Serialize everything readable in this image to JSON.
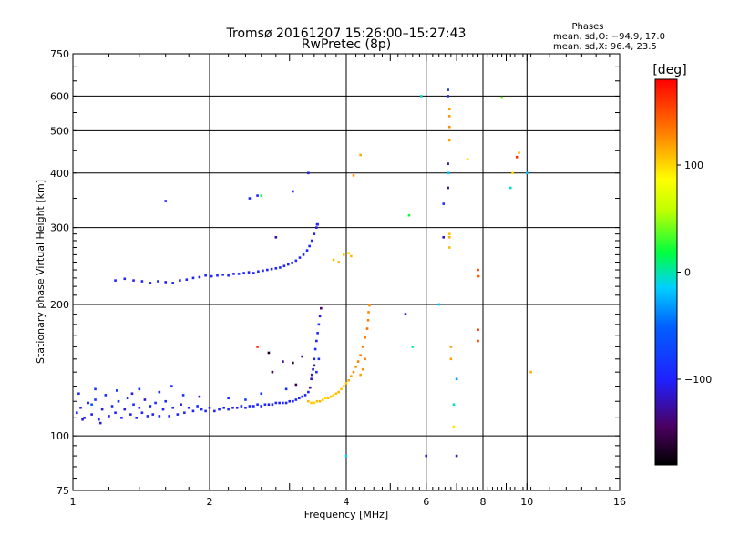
{
  "chart_data": {
    "type": "scatter",
    "title": "Tromsø 20161207 15:26:00–15:27:43",
    "subtitle": "RwPretec (8p)",
    "xlabel": "Frequency [MHz]",
    "ylabel": "Stationary phase Virtual Height [km]",
    "x_scale": "log",
    "y_scale": "log",
    "xlim": [
      1,
      16
    ],
    "ylim": [
      75,
      750
    ],
    "x_ticks": [
      1,
      2,
      4,
      6,
      8,
      10,
      16
    ],
    "x_tick_labels": [
      "1",
      "2",
      "4",
      "6",
      "8",
      "10",
      "16"
    ],
    "y_ticks": [
      75,
      100,
      200,
      300,
      400,
      500,
      600,
      750
    ],
    "y_tick_labels": [
      "75",
      "100",
      "200",
      "300",
      "400",
      "500",
      "600",
      "750"
    ],
    "grid": true,
    "stats": {
      "heading": "Phases",
      "line_o": "mean, sd,O: −94.9, 17.0",
      "line_x": "mean, sd,X:  96.4, 23.5"
    },
    "colorbar": {
      "label": "[deg]",
      "range": [
        -180,
        180
      ],
      "ticks": [
        100,
        0,
        -100
      ],
      "tick_labels": [
        "100",
        "0",
        "−100"
      ],
      "colormap": "rainbow"
    },
    "series": [
      {
        "points": [
          [
            1.02,
            113,
            -95
          ],
          [
            1.04,
            116,
            -100
          ],
          [
            1.06,
            110,
            -92
          ],
          [
            1.08,
            119,
            -98
          ],
          [
            1.1,
            112,
            -105
          ],
          [
            1.12,
            121,
            -90
          ],
          [
            1.14,
            109,
            -96
          ],
          [
            1.16,
            115,
            -110
          ],
          [
            1.18,
            124,
            -94
          ],
          [
            1.2,
            111,
            -99
          ],
          [
            1.22,
            117,
            -88
          ],
          [
            1.24,
            113,
            -102
          ],
          [
            1.26,
            120,
            -97
          ],
          [
            1.28,
            110,
            -93
          ],
          [
            1.3,
            115,
            -108
          ],
          [
            1.32,
            122,
            -95
          ],
          [
            1.34,
            112,
            -100
          ],
          [
            1.36,
            118,
            -91
          ],
          [
            1.38,
            110,
            -104
          ],
          [
            1.4,
            116,
            -96
          ],
          [
            1.42,
            113,
            -98
          ],
          [
            1.44,
            121,
            -115
          ],
          [
            1.46,
            111,
            -94
          ],
          [
            1.48,
            117,
            -99
          ],
          [
            1.5,
            112,
            -102
          ],
          [
            1.52,
            119,
            -90
          ],
          [
            1.55,
            111,
            -97
          ],
          [
            1.58,
            115,
            -103
          ],
          [
            1.6,
            120,
            -95
          ],
          [
            1.63,
            111,
            -100
          ],
          [
            1.66,
            116,
            -92
          ],
          [
            1.7,
            112,
            -98
          ],
          [
            1.73,
            118,
            -106
          ],
          [
            1.76,
            113,
            -94
          ],
          [
            1.8,
            116,
            -99
          ],
          [
            1.84,
            114,
            -101
          ],
          [
            1.88,
            117,
            -96
          ],
          [
            1.92,
            115,
            -93
          ],
          [
            1.96,
            114,
            -98
          ],
          [
            2.0,
            116,
            -102
          ],
          [
            2.05,
            114,
            -95
          ],
          [
            2.1,
            115,
            -97
          ],
          [
            2.15,
            116,
            -100
          ],
          [
            2.2,
            115,
            -93
          ],
          [
            2.25,
            116,
            -99
          ],
          [
            2.3,
            116,
            -104
          ],
          [
            2.35,
            117,
            -96
          ],
          [
            2.4,
            116,
            -94
          ],
          [
            2.45,
            117,
            -101
          ],
          [
            2.5,
            117,
            -97
          ],
          [
            2.55,
            118,
            -95
          ],
          [
            2.6,
            117,
            -99
          ],
          [
            2.65,
            118,
            -92
          ],
          [
            2.7,
            118,
            -100
          ],
          [
            2.75,
            118,
            -96
          ],
          [
            2.8,
            119,
            -98
          ],
          [
            2.85,
            119,
            -103
          ],
          [
            2.9,
            119,
            -95
          ],
          [
            2.95,
            119,
            -97
          ],
          [
            3.0,
            120,
            -99
          ],
          [
            3.05,
            120,
            -94
          ],
          [
            3.1,
            121,
            -101
          ],
          [
            3.15,
            122,
            -96
          ],
          [
            3.2,
            123,
            -98
          ],
          [
            3.25,
            124,
            -100
          ],
          [
            3.3,
            126,
            -95
          ],
          [
            3.33,
            129,
            -130
          ],
          [
            3.35,
            135,
            -120
          ],
          [
            3.38,
            142,
            -110
          ],
          [
            3.4,
            150,
            -98
          ],
          [
            3.42,
            158,
            -94
          ],
          [
            3.44,
            165,
            -100
          ],
          [
            3.46,
            172,
            -96
          ],
          [
            3.48,
            180,
            -92
          ],
          [
            3.5,
            188,
            -105
          ],
          [
            3.52,
            196,
            -140
          ],
          [
            3.44,
            140,
            -90
          ],
          [
            3.48,
            150,
            -88
          ],
          [
            3.36,
            138,
            -112
          ],
          [
            3.4,
            145,
            -130
          ],
          [
            1.03,
            125,
            -90
          ],
          [
            1.12,
            128,
            -85
          ],
          [
            1.25,
            127,
            -88
          ],
          [
            1.4,
            128,
            -84
          ],
          [
            1.55,
            126,
            -92
          ],
          [
            1.75,
            124,
            -86
          ],
          [
            2.2,
            122,
            -90
          ],
          [
            2.6,
            125,
            -85
          ],
          [
            2.95,
            128,
            -88
          ],
          [
            3.1,
            131,
            -150
          ],
          [
            1.1,
            118,
            -60
          ],
          [
            1.05,
            109,
            -110
          ],
          [
            1.15,
            107,
            -104
          ],
          [
            1.35,
            125,
            -110
          ],
          [
            1.65,
            130,
            -95
          ],
          [
            1.9,
            123,
            -108
          ],
          [
            2.4,
            121,
            -80
          ],
          [
            2.75,
            140,
            -150
          ],
          [
            3.05,
            147,
            -160
          ],
          [
            3.2,
            152,
            -130
          ]
        ]
      },
      {
        "points": [
          [
            1.24,
            227,
            -100
          ],
          [
            1.3,
            229,
            -96
          ],
          [
            1.36,
            227,
            -102
          ],
          [
            1.42,
            226,
            -94
          ],
          [
            1.48,
            224,
            -99
          ],
          [
            1.54,
            226,
            -97
          ],
          [
            1.6,
            225,
            -101
          ],
          [
            1.66,
            224,
            -95
          ],
          [
            1.72,
            227,
            -98
          ],
          [
            1.78,
            228,
            -92
          ],
          [
            1.84,
            230,
            -100
          ],
          [
            1.9,
            231,
            -97
          ],
          [
            1.96,
            233,
            -99
          ],
          [
            2.02,
            232,
            -95
          ],
          [
            2.08,
            233,
            -101
          ],
          [
            2.14,
            234,
            -96
          ],
          [
            2.2,
            233,
            -98
          ],
          [
            2.26,
            235,
            -100
          ],
          [
            2.32,
            235,
            -94
          ],
          [
            2.38,
            236,
            -99
          ],
          [
            2.44,
            237,
            -97
          ],
          [
            2.5,
            236,
            -102
          ],
          [
            2.56,
            238,
            -95
          ],
          [
            2.62,
            239,
            -98
          ],
          [
            2.68,
            240,
            -100
          ],
          [
            2.74,
            241,
            -96
          ],
          [
            2.8,
            242,
            -99
          ],
          [
            2.86,
            243,
            -95
          ],
          [
            2.92,
            245,
            -101
          ],
          [
            2.98,
            247,
            -97
          ],
          [
            3.04,
            249,
            -100
          ],
          [
            3.1,
            252,
            -94
          ],
          [
            3.16,
            256,
            -98
          ],
          [
            3.22,
            260,
            -102
          ],
          [
            3.28,
            266,
            -96
          ],
          [
            3.32,
            272,
            -99
          ],
          [
            3.36,
            280,
            -93
          ],
          [
            3.4,
            290,
            -97
          ],
          [
            3.44,
            300,
            -110
          ],
          [
            3.46,
            305,
            -105
          ]
        ]
      },
      {
        "points": [
          [
            3.3,
            120,
            110
          ],
          [
            3.35,
            119,
            105
          ],
          [
            3.4,
            119,
            100
          ],
          [
            3.45,
            120,
            108
          ],
          [
            3.5,
            120,
            112
          ],
          [
            3.55,
            121,
            104
          ],
          [
            3.6,
            122,
            98
          ],
          [
            3.65,
            122,
            106
          ],
          [
            3.7,
            123,
            110
          ],
          [
            3.75,
            124,
            102
          ],
          [
            3.8,
            125,
            108
          ],
          [
            3.85,
            126,
            112
          ],
          [
            3.9,
            128,
            105
          ],
          [
            3.95,
            130,
            100
          ],
          [
            4.0,
            132,
            106
          ],
          [
            4.05,
            134,
            115
          ],
          [
            4.1,
            137,
            120
          ],
          [
            4.15,
            140,
            124
          ],
          [
            4.2,
            144,
            128
          ],
          [
            4.25,
            148,
            130
          ],
          [
            4.3,
            153,
            132
          ],
          [
            4.35,
            160,
            135
          ],
          [
            4.4,
            168,
            133
          ],
          [
            4.45,
            176,
            138
          ],
          [
            4.47,
            184,
            130
          ],
          [
            4.48,
            192,
            128
          ],
          [
            4.5,
            199,
            125
          ],
          [
            4.4,
            150,
            128
          ],
          [
            4.35,
            142,
            122
          ],
          [
            4.3,
            138,
            118
          ],
          [
            3.95,
            260,
            105
          ],
          [
            4.05,
            262,
            100
          ],
          [
            4.1,
            258,
            110
          ],
          [
            3.85,
            250,
            112
          ],
          [
            3.75,
            253,
            108
          ]
        ]
      },
      {
        "points": [
          [
            1.6,
            345,
            -100
          ],
          [
            2.45,
            350,
            -95
          ],
          [
            2.55,
            355,
            -102
          ],
          [
            3.05,
            363,
            -98
          ],
          [
            3.3,
            400,
            -104
          ],
          [
            2.8,
            285,
            -125
          ],
          [
            3.45,
            305,
            -95
          ],
          [
            2.6,
            355,
            20
          ],
          [
            5.5,
            320,
            20
          ],
          [
            5.85,
            600,
            -5
          ],
          [
            6.55,
            340,
            -88
          ],
          [
            6.55,
            285,
            -120
          ],
          [
            6.7,
            600,
            -92
          ],
          [
            6.7,
            620,
            -85
          ],
          [
            6.7,
            420,
            -130
          ],
          [
            6.7,
            370,
            -130
          ],
          [
            6.72,
            400,
            -20
          ],
          [
            6.75,
            270,
            110
          ],
          [
            6.75,
            285,
            115
          ],
          [
            6.75,
            290,
            108
          ],
          [
            6.75,
            475,
            118
          ],
          [
            6.75,
            540,
            122
          ],
          [
            6.75,
            510,
            125
          ],
          [
            6.75,
            560,
            120
          ],
          [
            6.8,
            160,
            120
          ],
          [
            6.8,
            150,
            118
          ],
          [
            6.9,
            105,
            95
          ],
          [
            7.4,
            430,
            100
          ],
          [
            7.8,
            240,
            150
          ],
          [
            7.82,
            232,
            145
          ],
          [
            7.8,
            175,
            155
          ],
          [
            7.8,
            165,
            150
          ],
          [
            8.8,
            595,
            40
          ],
          [
            9.2,
            370,
            -5
          ],
          [
            9.3,
            400,
            100
          ],
          [
            9.5,
            435,
            160
          ],
          [
            9.6,
            445,
            110
          ],
          [
            10.0,
            400,
            -20
          ],
          [
            10.2,
            140,
            115
          ],
          [
            4.15,
            395,
            120
          ],
          [
            4.3,
            440,
            115
          ],
          [
            4.0,
            90,
            -10
          ],
          [
            5.4,
            190,
            -120
          ],
          [
            5.6,
            160,
            0
          ],
          [
            6.4,
            200,
            -20
          ],
          [
            7.0,
            90,
            -110
          ],
          [
            6.0,
            90,
            -115
          ],
          [
            7.0,
            135,
            -30
          ],
          [
            6.9,
            118,
            -5
          ],
          [
            2.7,
            155,
            -170
          ],
          [
            2.55,
            160,
            165
          ],
          [
            2.9,
            148,
            -135
          ]
        ]
      }
    ]
  }
}
